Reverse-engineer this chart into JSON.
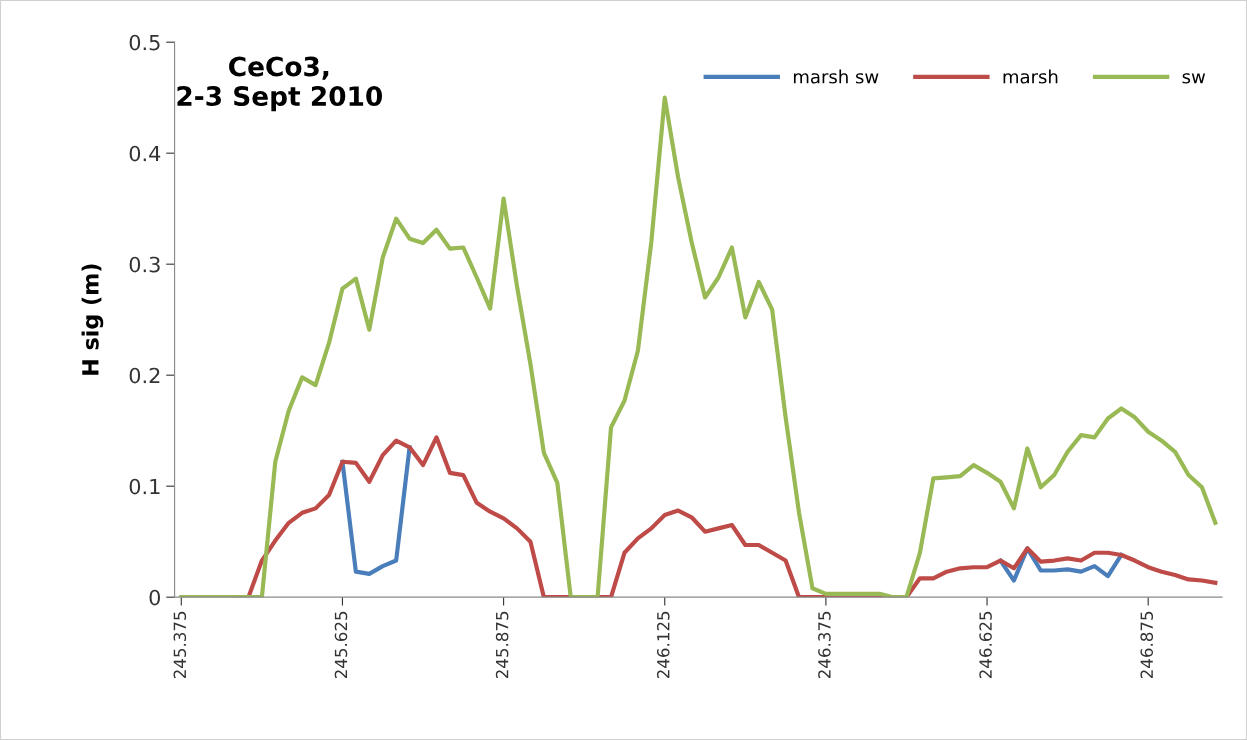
{
  "chart_data": {
    "type": "line",
    "title": "CeCo3,\n2-3 Sept 2010",
    "ylabel": "H sig (m)",
    "categories": [
      "245.375",
      null,
      null,
      null,
      null,
      null,
      null,
      null,
      null,
      null,
      null,
      null,
      "245.625",
      null,
      null,
      null,
      null,
      null,
      null,
      null,
      null,
      null,
      null,
      null,
      "245.875",
      null,
      null,
      null,
      null,
      null,
      null,
      null,
      null,
      null,
      null,
      null,
      "246.125",
      null,
      null,
      null,
      null,
      null,
      null,
      null,
      null,
      null,
      null,
      null,
      "246.375",
      null,
      null,
      null,
      null,
      null,
      null,
      null,
      null,
      null,
      null,
      null,
      "246.625",
      null,
      null,
      null,
      null,
      null,
      null,
      null,
      null,
      null,
      null,
      null,
      "246.875",
      null,
      null,
      null,
      null,
      null
    ],
    "series": [
      {
        "name": "marsh sw",
        "color": "#4a7ebb",
        "values": [
          null,
          null,
          null,
          null,
          null,
          null,
          null,
          null,
          null,
          null,
          null,
          null,
          0.122,
          0.023,
          0.021,
          0.028,
          0.033,
          0.135,
          null,
          null,
          null,
          null,
          null,
          null,
          null,
          null,
          null,
          null,
          null,
          null,
          null,
          null,
          null,
          null,
          null,
          null,
          null,
          null,
          null,
          null,
          null,
          null,
          null,
          null,
          null,
          null,
          null,
          null,
          null,
          null,
          null,
          null,
          null,
          null,
          null,
          null,
          null,
          null,
          null,
          null,
          null,
          0.033,
          0.015,
          0.044,
          0.024,
          0.024,
          0.025,
          0.023,
          0.028,
          0.019,
          0.038,
          null,
          null,
          null,
          null,
          null,
          null,
          null
        ]
      },
      {
        "name": "marsh",
        "color": "#be4b48",
        "values": [
          null,
          null,
          null,
          null,
          0,
          0,
          0.033,
          0.051,
          0.067,
          0.076,
          0.08,
          0.092,
          0.122,
          0.121,
          0.104,
          0.128,
          0.141,
          0.135,
          0.119,
          0.144,
          0.112,
          0.11,
          0.085,
          0.077,
          0.071,
          0.062,
          0.05,
          0,
          0,
          0,
          0,
          0,
          0,
          0.04,
          0.053,
          0.062,
          0.074,
          0.078,
          0.072,
          0.059,
          0.062,
          0.065,
          0.047,
          0.047,
          0.04,
          0.033,
          0,
          0,
          0,
          0,
          0,
          0,
          0,
          0,
          0,
          0.017,
          0.017,
          0.023,
          0.026,
          0.027,
          0.027,
          0.033,
          0.026,
          0.044,
          0.032,
          0.033,
          0.035,
          0.033,
          0.04,
          0.04,
          0.038,
          0.033,
          0.027,
          0.023,
          0.02,
          0.016,
          0.015,
          0.013
        ]
      },
      {
        "name": "sw",
        "color": "#98b954",
        "values": [
          0,
          0,
          0,
          0,
          0,
          0,
          0,
          0.122,
          0.168,
          0.198,
          0.191,
          0.229,
          0.278,
          0.287,
          0.241,
          0.306,
          0.341,
          0.323,
          0.319,
          0.331,
          0.314,
          0.315,
          0.288,
          0.26,
          0.359,
          0.28,
          0.21,
          0.13,
          0.103,
          0,
          0,
          0,
          0.153,
          0.177,
          0.222,
          0.32,
          0.45,
          0.378,
          0.32,
          0.27,
          0.288,
          0.315,
          0.252,
          0.284,
          0.259,
          0.162,
          0.076,
          0.008,
          0.003,
          0.003,
          0.003,
          0.003,
          0.003,
          0,
          0,
          0.04,
          0.107,
          0.108,
          0.109,
          0.119,
          0.112,
          0.104,
          0.08,
          0.134,
          0.099,
          0.11,
          0.131,
          0.146,
          0.144,
          0.161,
          0.17,
          0.162,
          0.149,
          0.141,
          0.131,
          0.11,
          0.099,
          0.067
        ]
      }
    ],
    "ylim": [
      0,
      0.5
    ],
    "yticks": [
      0,
      0.1,
      0.2,
      0.3,
      0.4,
      0.5
    ],
    "grid": false,
    "legend": "top right",
    "marker": "none",
    "line_style": "solid"
  }
}
